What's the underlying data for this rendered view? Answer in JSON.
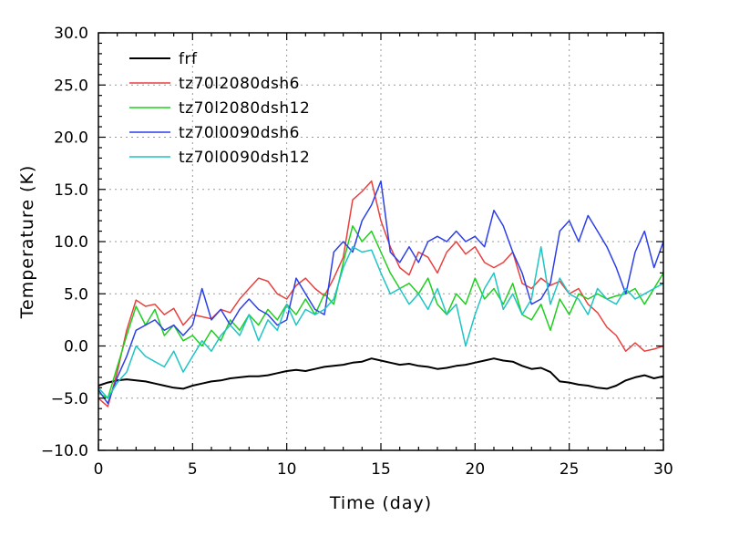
{
  "chart_data": {
    "type": "line",
    "xlabel": "Time (day)",
    "ylabel": "Temperature (K)",
    "xlim": [
      0,
      30
    ],
    "ylim": [
      -10,
      30
    ],
    "xticks": [
      "0",
      "5",
      "10",
      "15",
      "20",
      "25",
      "30"
    ],
    "yticks": [
      "−10.0",
      "−5.0",
      "0.0",
      "5.0",
      "10.0",
      "15.0",
      "20.0",
      "25.0",
      "30.0"
    ],
    "grid": true,
    "legend_position": "top-left",
    "series": [
      {
        "name": "frf",
        "color": "#000000",
        "x": [
          0,
          0.5,
          1,
          1.5,
          2,
          2.5,
          3,
          3.5,
          4,
          4.5,
          5,
          5.5,
          6,
          6.5,
          7,
          7.5,
          8,
          8.5,
          9,
          9.5,
          10,
          10.5,
          11,
          11.5,
          12,
          12.5,
          13,
          13.5,
          14,
          14.5,
          15,
          15.5,
          16,
          16.5,
          17,
          17.5,
          18,
          18.5,
          19,
          19.5,
          20,
          20.5,
          21,
          21.5,
          22,
          22.5,
          23,
          23.5,
          24,
          24.5,
          25,
          25.5,
          26,
          26.5,
          27,
          27.5,
          28,
          28.5,
          29,
          29.5,
          30
        ],
        "y": [
          -3.8,
          -3.5,
          -3.3,
          -3.2,
          -3.3,
          -3.4,
          -3.6,
          -3.8,
          -4.0,
          -4.1,
          -3.8,
          -3.6,
          -3.4,
          -3.3,
          -3.1,
          -3.0,
          -2.9,
          -2.9,
          -2.8,
          -2.6,
          -2.4,
          -2.3,
          -2.4,
          -2.2,
          -2.0,
          -1.9,
          -1.8,
          -1.6,
          -1.5,
          -1.2,
          -1.4,
          -1.6,
          -1.8,
          -1.7,
          -1.9,
          -2.0,
          -2.2,
          -2.1,
          -1.9,
          -1.8,
          -1.6,
          -1.4,
          -1.2,
          -1.4,
          -1.5,
          -1.9,
          -2.2,
          -2.1,
          -2.5,
          -3.4,
          -3.5,
          -3.7,
          -3.8,
          -4.0,
          -4.1,
          -3.8,
          -3.3,
          -3.0,
          -2.8,
          -3.1,
          -2.9
        ]
      },
      {
        "name": "tz70l2080dsh6",
        "color": "#e8403f",
        "x": [
          0,
          0.5,
          1,
          1.5,
          2,
          2.5,
          3,
          3.5,
          4,
          4.5,
          5,
          5.5,
          6,
          6.5,
          7,
          7.5,
          8,
          8.5,
          9,
          9.5,
          10,
          10.5,
          11,
          11.5,
          12,
          12.5,
          13,
          13.5,
          14,
          14.5,
          15,
          15.5,
          16,
          16.5,
          17,
          17.5,
          18,
          18.5,
          19,
          19.5,
          20,
          20.5,
          21,
          21.5,
          22,
          22.5,
          23,
          23.5,
          24,
          24.5,
          25,
          25.5,
          26,
          26.5,
          27,
          27.5,
          28,
          28.5,
          29,
          29.5,
          30
        ],
        "y": [
          -5.0,
          -5.8,
          -2.5,
          1.5,
          4.4,
          3.8,
          4.0,
          3.0,
          3.6,
          2.0,
          3.0,
          2.8,
          2.6,
          3.5,
          3.2,
          4.5,
          5.5,
          6.5,
          6.2,
          5.0,
          4.5,
          5.8,
          6.5,
          5.5,
          4.8,
          6.5,
          8.5,
          14.0,
          14.8,
          15.8,
          12.0,
          9.5,
          7.5,
          6.8,
          9.0,
          8.5,
          7.0,
          9.0,
          10.0,
          8.8,
          9.5,
          8.0,
          7.5,
          8.0,
          9.0,
          6.0,
          5.5,
          6.5,
          5.8,
          6.2,
          5.0,
          5.5,
          4.0,
          3.2,
          1.8,
          1.0,
          -0.5,
          0.3,
          -0.5,
          -0.3,
          0.0
        ]
      },
      {
        "name": "tz70l2080dsh12",
        "color": "#1fcf1f",
        "x": [
          0,
          0.5,
          1,
          1.5,
          2,
          2.5,
          3,
          3.5,
          4,
          4.5,
          5,
          5.5,
          6,
          6.5,
          7,
          7.5,
          8,
          8.5,
          9,
          9.5,
          10,
          10.5,
          11,
          11.5,
          12,
          12.5,
          13,
          13.5,
          14,
          14.5,
          15,
          15.5,
          16,
          16.5,
          17,
          17.5,
          18,
          18.5,
          19,
          19.5,
          20,
          20.5,
          21,
          21.5,
          22,
          22.5,
          23,
          23.5,
          24,
          24.5,
          25,
          25.5,
          26,
          26.5,
          27,
          27.5,
          28,
          28.5,
          29,
          29.5,
          30
        ],
        "y": [
          -4.5,
          -5.0,
          -2.0,
          1.0,
          3.8,
          2.0,
          3.5,
          1.0,
          2.0,
          0.5,
          1.0,
          0.0,
          1.5,
          0.5,
          2.5,
          1.5,
          3.0,
          2.0,
          3.5,
          2.5,
          4.0,
          3.0,
          4.5,
          3.0,
          5.0,
          4.0,
          8.0,
          11.5,
          10.0,
          11.0,
          9.0,
          7.0,
          5.5,
          6.0,
          5.0,
          6.5,
          4.0,
          3.0,
          5.0,
          4.0,
          6.5,
          4.5,
          5.5,
          4.0,
          6.0,
          3.0,
          2.5,
          4.0,
          1.5,
          4.5,
          3.0,
          5.0,
          4.5,
          5.0,
          4.5,
          4.8,
          5.0,
          5.5,
          4.0,
          5.5,
          7.0
        ]
      },
      {
        "name": "tz70l0090dsh6",
        "color": "#2d3fe8",
        "x": [
          0,
          0.5,
          1,
          1.5,
          2,
          2.5,
          3,
          3.5,
          4,
          4.5,
          5,
          5.5,
          6,
          6.5,
          7,
          7.5,
          8,
          8.5,
          9,
          9.5,
          10,
          10.5,
          11,
          11.5,
          12,
          12.5,
          13,
          13.5,
          14,
          14.5,
          15,
          15.5,
          16,
          16.5,
          17,
          17.5,
          18,
          18.5,
          19,
          19.5,
          20,
          20.5,
          21,
          21.5,
          22,
          22.5,
          23,
          23.5,
          24,
          24.5,
          25,
          25.5,
          26,
          26.5,
          27,
          27.5,
          28,
          28.5,
          29,
          29.5,
          30
        ],
        "y": [
          -4.2,
          -5.5,
          -3.0,
          -1.0,
          1.5,
          2.0,
          2.5,
          1.5,
          2.0,
          1.0,
          2.0,
          5.5,
          2.5,
          3.5,
          2.0,
          3.5,
          4.5,
          3.5,
          3.0,
          2.0,
          2.5,
          6.5,
          5.0,
          3.5,
          3.0,
          9.0,
          10.0,
          9.0,
          12.0,
          13.5,
          15.8,
          9.0,
          8.0,
          9.5,
          8.0,
          10.0,
          10.5,
          10.0,
          11.0,
          10.0,
          10.5,
          9.5,
          13.0,
          11.5,
          9.0,
          7.0,
          4.0,
          4.5,
          6.0,
          11.0,
          12.0,
          10.0,
          12.5,
          11.0,
          9.5,
          7.5,
          5.0,
          9.0,
          11.0,
          7.5,
          10.0
        ]
      },
      {
        "name": "tz70l0090dsh12",
        "color": "#1fc4c4",
        "x": [
          0,
          0.5,
          1,
          1.5,
          2,
          2.5,
          3,
          3.5,
          4,
          4.5,
          5,
          5.5,
          6,
          6.5,
          7,
          7.5,
          8,
          8.5,
          9,
          9.5,
          10,
          10.5,
          11,
          11.5,
          12,
          12.5,
          13,
          13.5,
          14,
          14.5,
          15,
          15.5,
          16,
          16.5,
          17,
          17.5,
          18,
          18.5,
          19,
          19.5,
          20,
          20.5,
          21,
          21.5,
          22,
          22.5,
          23,
          23.5,
          24,
          24.5,
          25,
          25.5,
          26,
          26.5,
          27,
          27.5,
          28,
          28.5,
          29,
          29.5,
          30
        ],
        "y": [
          -4.0,
          -5.0,
          -3.5,
          -2.5,
          0.0,
          -1.0,
          -1.5,
          -2.0,
          -0.5,
          -2.5,
          -1.0,
          0.5,
          -0.5,
          1.0,
          2.0,
          1.0,
          3.0,
          0.5,
          2.5,
          1.5,
          4.0,
          2.0,
          3.5,
          3.0,
          3.5,
          4.5,
          7.5,
          9.5,
          9.0,
          9.2,
          7.0,
          5.0,
          5.5,
          4.0,
          5.0,
          3.5,
          5.5,
          3.0,
          4.0,
          0.0,
          3.0,
          5.5,
          7.0,
          3.5,
          5.0,
          3.0,
          4.5,
          9.5,
          4.0,
          6.5,
          5.0,
          4.5,
          3.0,
          5.5,
          4.5,
          4.0,
          5.5,
          4.5,
          5.0,
          5.5,
          6.0
        ]
      }
    ]
  }
}
